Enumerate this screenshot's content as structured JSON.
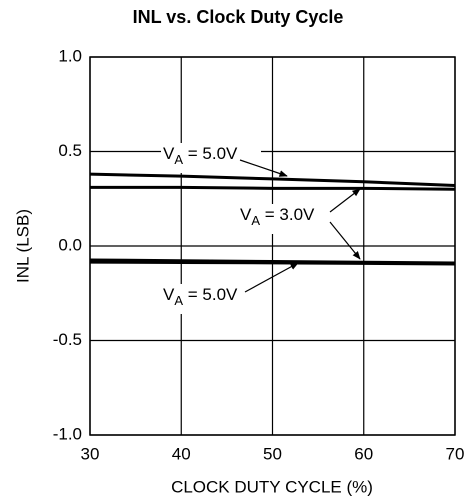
{
  "chart_data": {
    "type": "line",
    "title": "INL vs. Clock Duty Cycle",
    "xlabel": "CLOCK DUTY CYCLE (%)",
    "ylabel": "INL (LSB)",
    "x": [
      30,
      40,
      50,
      60,
      70
    ],
    "series": [
      {
        "color": "#000000",
        "values": [
          0.38,
          0.37,
          0.355,
          0.34,
          0.32
        ]
      },
      {
        "color": "#000000",
        "values": [
          0.31,
          0.31,
          0.305,
          0.305,
          0.3
        ]
      },
      {
        "color": "#000000",
        "values": [
          -0.074,
          -0.078,
          -0.082,
          -0.086,
          -0.09
        ]
      },
      {
        "color": "#000000",
        "values": [
          -0.085,
          -0.087,
          -0.089,
          -0.092,
          -0.095
        ]
      }
    ],
    "annotations": [
      {
        "base": "V",
        "sub": "A",
        "rest": " = 5.0V"
      },
      {
        "base": "V",
        "sub": "A",
        "rest": " = 3.0V"
      },
      {
        "base": "V",
        "sub": "A",
        "rest": " = 5.0V"
      }
    ],
    "xlim": [
      30,
      70
    ],
    "xticks": [
      30,
      40,
      50,
      60,
      70
    ],
    "ylim": [
      -1,
      1
    ],
    "yticks": [
      {
        "value": -1,
        "label": "-1.0"
      },
      {
        "value": -0.5,
        "label": "-0.5"
      },
      {
        "value": 0,
        "label": "0.0"
      },
      {
        "value": 0.5,
        "label": "0.5"
      },
      {
        "value": 1,
        "label": "1.0"
      }
    ],
    "grid": true
  }
}
